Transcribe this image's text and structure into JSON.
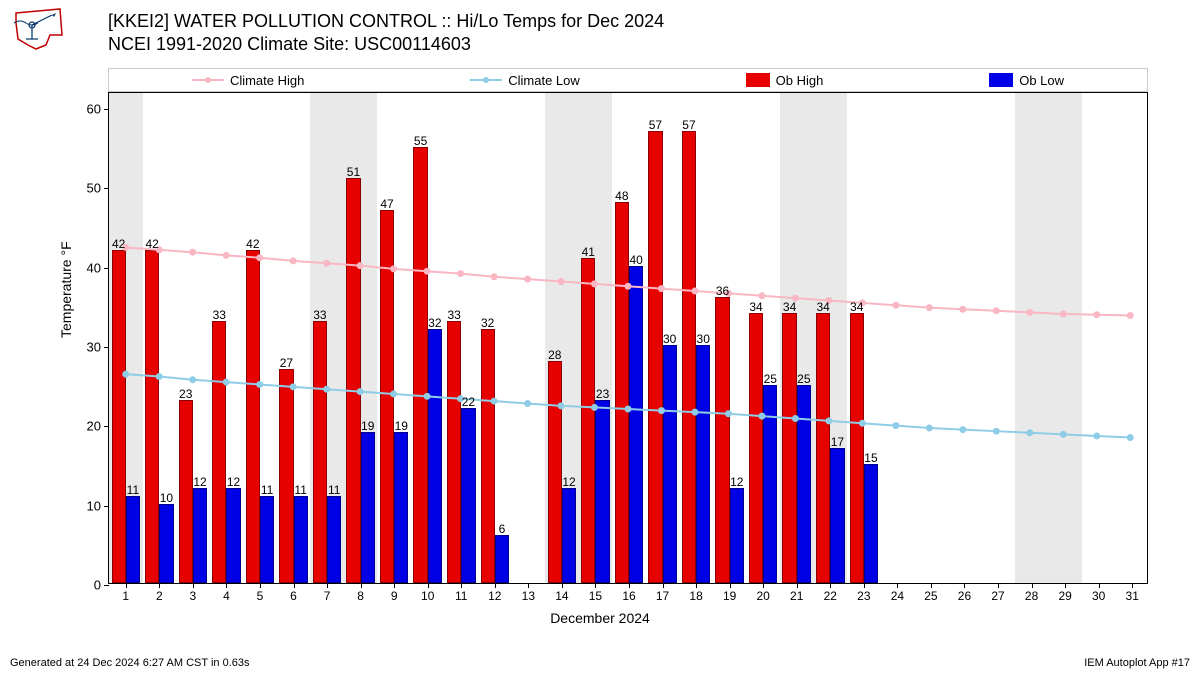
{
  "title_line1": "[KKEI2] WATER POLLUTION CONTROL :: Hi/Lo Temps for Dec 2024",
  "title_line2": "NCEI 1991-2020 Climate Site: USC00114603",
  "ylabel": "Temperature °F",
  "xlabel": "December 2024",
  "footer_left": "Generated at 24 Dec 2024 6:27 AM CST in 0.63s",
  "footer_right": "IEM Autoplot App #17",
  "legend": {
    "climate_high": "Climate High",
    "climate_low": "Climate Low",
    "ob_high": "Ob High",
    "ob_low": "Ob Low"
  },
  "colors": {
    "climate_high": "#f9b6c3",
    "climate_low": "#8fcde6",
    "ob_high": "#e60000",
    "ob_low": "#0000e6",
    "weekend_band": "#e9e9e9",
    "background": "#ffffff",
    "text": "#000000"
  },
  "chart": {
    "type": "bar+line",
    "xlim": [
      0.5,
      31.5
    ],
    "ylim": [
      0,
      62
    ],
    "yticks": [
      0,
      10,
      20,
      30,
      40,
      50,
      60
    ],
    "days": [
      1,
      2,
      3,
      4,
      5,
      6,
      7,
      8,
      9,
      10,
      11,
      12,
      13,
      14,
      15,
      16,
      17,
      18,
      19,
      20,
      21,
      22,
      23,
      24,
      25,
      26,
      27,
      28,
      29,
      30,
      31
    ],
    "weekend_days": [
      1,
      7,
      8,
      14,
      15,
      21,
      22,
      28,
      29
    ],
    "bar_group_width": 0.85,
    "ob_high": [
      42,
      42,
      23,
      33,
      42,
      27,
      33,
      51,
      47,
      55,
      33,
      32,
      null,
      28,
      41,
      48,
      57,
      57,
      36,
      34,
      34,
      34,
      34,
      null,
      null,
      null,
      null,
      null,
      null,
      null,
      null
    ],
    "ob_low": [
      11,
      10,
      12,
      12,
      11,
      11,
      11,
      19,
      19,
      32,
      22,
      6,
      null,
      12,
      23,
      40,
      30,
      30,
      12,
      25,
      25,
      17,
      15,
      null,
      null,
      null,
      null,
      null,
      null,
      null,
      null
    ],
    "ob_low_label15": 15,
    "climate_high": [
      42.5,
      42.2,
      41.9,
      41.5,
      41.2,
      40.8,
      40.5,
      40.2,
      39.8,
      39.5,
      39.2,
      38.8,
      38.5,
      38.2,
      37.9,
      37.6,
      37.3,
      37.0,
      36.7,
      36.4,
      36.1,
      35.8,
      35.5,
      35.2,
      34.9,
      34.7,
      34.5,
      34.3,
      34.1,
      34.0,
      33.9
    ],
    "climate_low": [
      26.5,
      26.2,
      25.8,
      25.5,
      25.2,
      24.9,
      24.6,
      24.3,
      24.0,
      23.7,
      23.4,
      23.1,
      22.8,
      22.5,
      22.3,
      22.1,
      21.9,
      21.7,
      21.5,
      21.2,
      20.9,
      20.6,
      20.3,
      20.0,
      19.7,
      19.5,
      19.3,
      19.1,
      18.9,
      18.7,
      18.5
    ]
  }
}
